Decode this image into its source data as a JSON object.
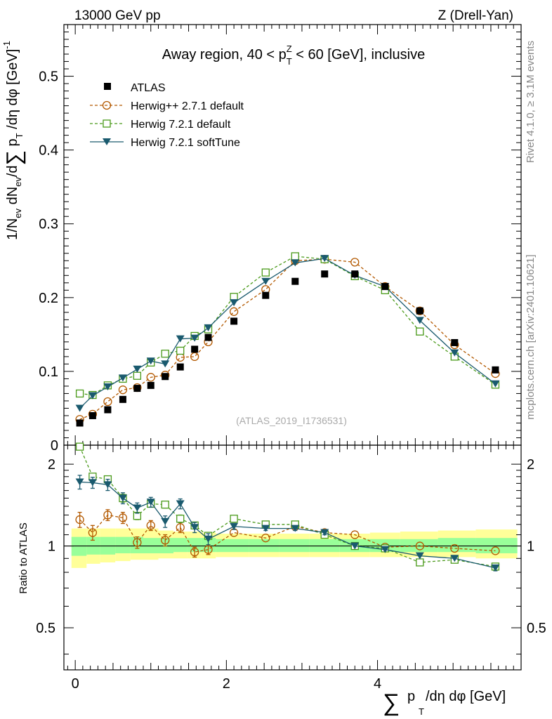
{
  "header": {
    "left": "13000 GeV pp",
    "right": "Z (Drell-Yan)"
  },
  "side_labels": {
    "rivet": "Rivet 4.1.0, ≥ 3.1M events",
    "mcplots": "mcplots.cern.ch [arXiv:2401.10621]"
  },
  "chart_data": {
    "type": "scatter",
    "title": "Away region, 40 < p_T^Z < 60 [GeV], inclusive",
    "watermark": "(ATLAS_2019_I1736531)",
    "xlabel": "∑ p_T /dη dφ [GeV]",
    "ylabel": "1/N_ev dN_ev/d∑ p_T /dη dφ [GeV]^-1",
    "ratio_ylabel": "Ratio to ATLAS",
    "xlim": [
      -0.15,
      5.9
    ],
    "ylim": [
      0,
      0.57
    ],
    "ratio_ylim": [
      0.35,
      2.35
    ],
    "xticks": [
      0,
      2,
      4
    ],
    "yticks": [
      0.1,
      0.2,
      0.3,
      0.4,
      0.5
    ],
    "yticks_extra": [
      0
    ],
    "ratio_yticks": [
      0.5,
      1,
      2
    ],
    "x": [
      0.06,
      0.23,
      0.43,
      0.63,
      0.82,
      1.0,
      1.19,
      1.39,
      1.58,
      1.76,
      2.1,
      2.52,
      2.91,
      3.3,
      3.7,
      4.1,
      4.56,
      5.02,
      5.56
    ],
    "series": [
      {
        "name": "ATLAS",
        "color": "#000000",
        "marker": "square-filled",
        "values": [
          0.03,
          0.04,
          0.048,
          0.062,
          0.077,
          0.081,
          0.093,
          0.106,
          0.13,
          0.146,
          0.168,
          0.203,
          0.222,
          0.232,
          0.232,
          0.215,
          0.182,
          0.139,
          0.102
        ],
        "ratio": [
          1,
          1,
          1,
          1,
          1,
          1,
          1,
          1,
          1,
          1,
          1,
          1,
          1,
          1,
          1,
          1,
          1,
          1,
          1
        ]
      },
      {
        "name": "Herwig++ 2.7.1 default",
        "color": "#b35900",
        "marker": "circle-open",
        "dash": "4,3",
        "values": [
          0.035,
          0.042,
          0.059,
          0.075,
          0.078,
          0.092,
          0.095,
          0.119,
          0.12,
          0.14,
          0.181,
          0.211,
          0.25,
          0.252,
          0.248,
          0.215,
          0.182,
          0.136,
          0.097
        ],
        "ratio": [
          1.25,
          1.12,
          1.3,
          1.27,
          1.03,
          1.19,
          1.05,
          1.17,
          0.95,
          0.97,
          1.12,
          1.07,
          1.18,
          1.12,
          1.1,
          0.99,
          1.0,
          0.98,
          0.96
        ],
        "ratio_err": [
          0.08,
          0.07,
          0.06,
          0.06,
          0.05,
          0.05,
          0.05,
          0.05,
          0.04,
          0.04,
          0,
          0,
          0,
          0,
          0,
          0,
          0,
          0,
          0
        ]
      },
      {
        "name": "Herwig 7.2.1 default",
        "color": "#4a9a1a",
        "marker": "square-open",
        "dash": "4,3",
        "values": [
          0.07,
          0.068,
          0.081,
          0.09,
          0.094,
          0.112,
          0.124,
          0.128,
          0.148,
          0.157,
          0.201,
          0.234,
          0.256,
          0.252,
          0.229,
          0.21,
          0.154,
          0.12,
          0.082
        ],
        "ratio": [
          2.32,
          1.8,
          1.76,
          1.5,
          1.29,
          1.43,
          1.42,
          1.26,
          1.19,
          1.09,
          1.26,
          1.2,
          1.2,
          1.1,
          1.0,
          0.98,
          0.87,
          0.89,
          0.84
        ],
        "ratio_err": [
          0.06,
          0.05,
          0.05,
          0.05,
          0.04,
          0.04,
          0.04,
          0.04,
          0.03,
          0.03,
          0,
          0,
          0,
          0,
          0,
          0,
          0,
          0,
          0
        ]
      },
      {
        "name": "Herwig 7.2.1 softTune",
        "color": "#1a5a6e",
        "marker": "triangle-down-filled",
        "dash": "",
        "values": [
          0.05,
          0.067,
          0.079,
          0.091,
          0.103,
          0.114,
          0.11,
          0.144,
          0.145,
          0.159,
          0.193,
          0.222,
          0.247,
          0.253,
          0.23,
          0.215,
          0.169,
          0.125,
          0.083
        ],
        "ratio": [
          1.72,
          1.71,
          1.68,
          1.5,
          1.38,
          1.45,
          1.23,
          1.43,
          1.17,
          1.06,
          1.18,
          1.16,
          1.16,
          1.12,
          1.0,
          0.97,
          0.92,
          0.9,
          0.83
        ],
        "ratio_err": [
          0.1,
          0.08,
          0.08,
          0.07,
          0.06,
          0.06,
          0.06,
          0.06,
          0.05,
          0.05,
          0.03,
          0.02,
          0.02,
          0.02,
          0,
          0,
          0,
          0,
          0.02
        ]
      }
    ],
    "bands": {
      "outer_color": "#ffff99",
      "inner_color": "#99ff99",
      "edges": [
        -0.05,
        0.15,
        0.33,
        0.53,
        0.73,
        0.9,
        1.1,
        1.3,
        1.48,
        1.67,
        1.86,
        2.3,
        2.7,
        3.1,
        3.5,
        3.9,
        4.3,
        4.8,
        5.3,
        5.85
      ],
      "outer_hi": [
        1.16,
        1.16,
        1.16,
        1.16,
        1.16,
        1.16,
        1.14,
        1.13,
        1.13,
        1.12,
        1.11,
        1.11,
        1.11,
        1.11,
        1.11,
        1.12,
        1.13,
        1.14,
        1.15
      ],
      "outer_lo": [
        0.83,
        0.86,
        0.87,
        0.88,
        0.89,
        0.89,
        0.9,
        0.9,
        0.9,
        0.9,
        0.91,
        0.91,
        0.91,
        0.91,
        0.91,
        0.91,
        0.91,
        0.91,
        0.9
      ],
      "inner_hi": [
        1.08,
        1.08,
        1.08,
        1.08,
        1.08,
        1.07,
        1.07,
        1.07,
        1.07,
        1.07,
        1.06,
        1.06,
        1.06,
        1.06,
        1.06,
        1.06,
        1.06,
        1.07,
        1.07
      ],
      "inner_lo": [
        0.92,
        0.93,
        0.93,
        0.94,
        0.94,
        0.94,
        0.94,
        0.95,
        0.95,
        0.95,
        0.95,
        0.95,
        0.95,
        0.95,
        0.95,
        0.95,
        0.95,
        0.95,
        0.94
      ]
    }
  }
}
